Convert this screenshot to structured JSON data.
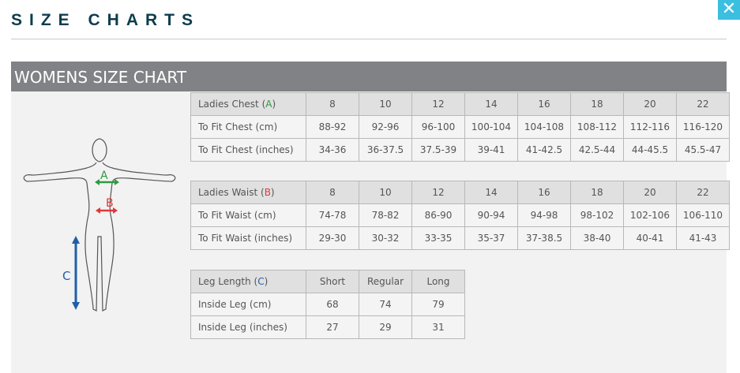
{
  "title": "SIZE CHARTS",
  "close_icon": "close-x-icon",
  "panel_title": "WOMENS SIZE CHART",
  "diagram": {
    "a": "A",
    "b": "B",
    "c": "C",
    "colors": {
      "A": "#2e9a42",
      "B": "#e03838",
      "C": "#1f5fa8"
    }
  },
  "chest": {
    "header_label": "Ladies Chest (",
    "header_letter": "A",
    "sizes": [
      "8",
      "10",
      "12",
      "14",
      "16",
      "18",
      "20",
      "22"
    ],
    "rows": [
      {
        "label": "To Fit Chest (cm)",
        "values": [
          "88-92",
          "92-96",
          "96-100",
          "100-104",
          "104-108",
          "108-112",
          "112-116",
          "116-120"
        ]
      },
      {
        "label": "To Fit Chest (inches)",
        "values": [
          "34-36",
          "36-37.5",
          "37.5-39",
          "39-41",
          "41-42.5",
          "42.5-44",
          "44-45.5",
          "45.5-47"
        ]
      }
    ]
  },
  "waist": {
    "header_label": "Ladies Waist (",
    "header_letter": "B",
    "sizes": [
      "8",
      "10",
      "12",
      "14",
      "16",
      "18",
      "20",
      "22"
    ],
    "rows": [
      {
        "label": "To Fit Waist (cm)",
        "values": [
          "74-78",
          "78-82",
          "86-90",
          "90-94",
          "94-98",
          "98-102",
          "102-106",
          "106-110"
        ]
      },
      {
        "label": "To Fit Waist (inches)",
        "values": [
          "29-30",
          "30-32",
          "33-35",
          "35-37",
          "37-38.5",
          "38-40",
          "40-41",
          "41-43"
        ]
      }
    ]
  },
  "leg": {
    "header_label": "Leg Length (",
    "header_letter": "C",
    "sizes": [
      "Short",
      "Regular",
      "Long"
    ],
    "rows": [
      {
        "label": "Inside Leg (cm)",
        "values": [
          "68",
          "74",
          "79"
        ]
      },
      {
        "label": "Inside Leg (inches)",
        "values": [
          "27",
          "29",
          "31"
        ]
      }
    ]
  }
}
